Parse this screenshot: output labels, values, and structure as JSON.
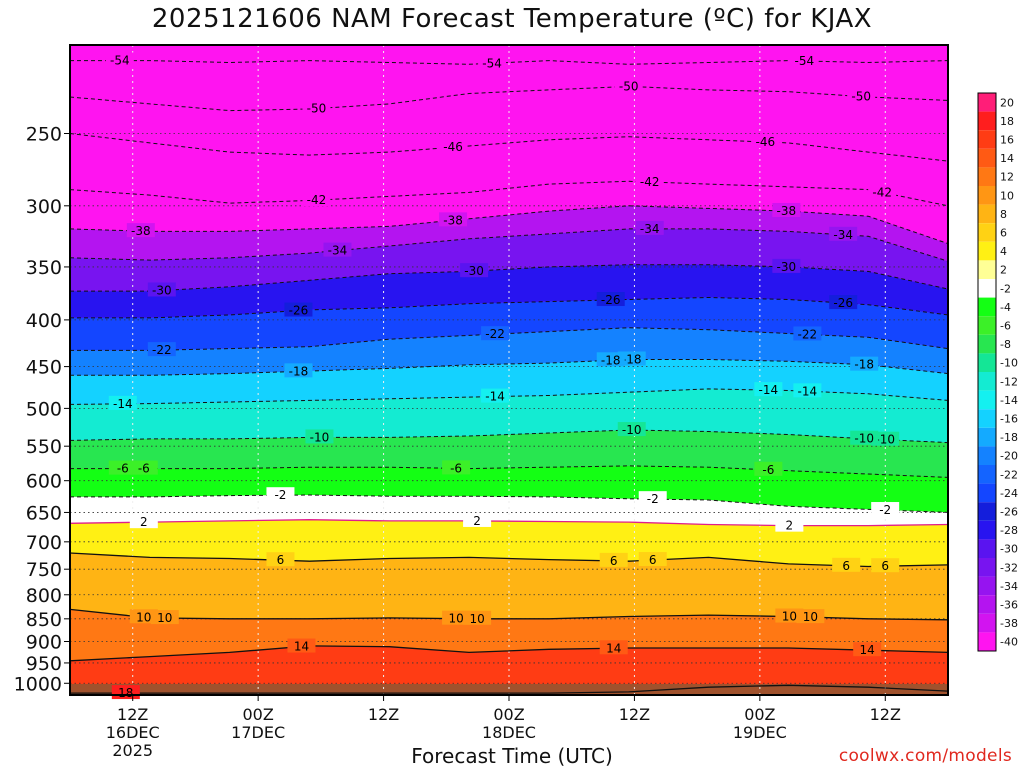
{
  "chart_data": {
    "type": "heatmap",
    "title": "2025121606 NAM Forecast Temperature (ºC) for KJAX",
    "xlabel": "Forecast Time (UTC)",
    "ylabel": "",
    "y_scale": "log (pressure)",
    "ylim": [
      1030,
      200
    ],
    "y_ticks": [
      250,
      300,
      350,
      400,
      450,
      500,
      550,
      600,
      650,
      700,
      750,
      800,
      850,
      900,
      950,
      1000
    ],
    "x_ticks": [
      {
        "time": "2025-12-16 12Z",
        "lines": [
          "12Z",
          "16DEC",
          "2025"
        ]
      },
      {
        "time": "2025-12-17 00Z",
        "lines": [
          "00Z",
          "17DEC"
        ]
      },
      {
        "time": "2025-12-17 12Z",
        "lines": [
          "12Z"
        ]
      },
      {
        "time": "2025-12-18 00Z",
        "lines": [
          "00Z",
          "18DEC"
        ]
      },
      {
        "time": "2025-12-18 12Z",
        "lines": [
          "12Z"
        ]
      },
      {
        "time": "2025-12-19 00Z",
        "lines": [
          "00Z",
          "19DEC"
        ]
      },
      {
        "time": "2025-12-19 12Z",
        "lines": [
          "12Z"
        ]
      }
    ],
    "xlim": [
      "2025-12-16 06Z",
      "2025-12-19 18Z"
    ],
    "grid": true,
    "colorbar": {
      "position": "right",
      "labels": [
        "20",
        "18",
        "16",
        "14",
        "12",
        "10",
        "8",
        "6",
        "4",
        "2",
        "-2",
        "-4",
        "-6",
        "-8",
        "-10",
        "-12",
        "-14",
        "-16",
        "-18",
        "-20",
        "-22",
        "-24",
        "-26",
        "-28",
        "-30",
        "-32",
        "-34",
        "-36",
        "-38",
        "-40"
      ],
      "colors": [
        "#ff1e78",
        "#ff1e1e",
        "#ff3c14",
        "#ff5a14",
        "#ff7814",
        "#ff9614",
        "#ffb414",
        "#ffd214",
        "#fff014",
        "#ffff96",
        "#ffffff",
        "#14ff14",
        "#3cf028",
        "#28e650",
        "#14e696",
        "#14ebd2",
        "#14f0f0",
        "#14d2ff",
        "#14aaff",
        "#1482ff",
        "#1464ff",
        "#1446ff",
        "#141edc",
        "#2814f0",
        "#5a14f0",
        "#7814f0",
        "#9614f0",
        "#b414f0",
        "#d214f0",
        "#ff14f0"
      ]
    },
    "contour_labels": [
      "-54",
      "-54",
      "-54",
      "-50",
      "-50",
      "-50",
      "-46",
      "-46",
      "-42",
      "-42",
      "-42",
      "-38",
      "-38",
      "-38",
      "-34",
      "-34",
      "-34",
      "-30",
      "-30",
      "-30",
      "-26",
      "-26",
      "-26",
      "-22",
      "-22",
      "-22",
      "-18",
      "-18",
      "-18",
      "-18",
      "-14",
      "-14",
      "-14",
      "-14",
      "-10",
      "-10",
      "-10",
      "-10",
      "-6",
      "-6",
      "-6",
      "-6",
      "-2",
      "-2",
      "-2",
      "2",
      "2",
      "2",
      "6",
      "6",
      "6",
      "6",
      "6",
      "10",
      "10",
      "10",
      "10",
      "10",
      "10",
      "14",
      "14",
      "14",
      "18"
    ],
    "contour_rows": [
      {
        "level": -54,
        "p": [
          208,
          208,
          209,
          208,
          209,
          210,
          208,
          210,
          209,
          208,
          209,
          208
        ]
      },
      {
        "level": -50,
        "p": [
          228,
          232,
          236,
          235,
          232,
          226,
          224,
          222,
          224,
          225,
          228,
          230
        ]
      },
      {
        "level": -46,
        "p": [
          250,
          256,
          262,
          264,
          262,
          258,
          254,
          252,
          254,
          256,
          262,
          268
        ]
      },
      {
        "level": -42,
        "p": [
          288,
          292,
          298,
          296,
          293,
          290,
          284,
          282,
          284,
          286,
          288,
          300
        ]
      },
      {
        "level": -38,
        "p": [
          318,
          320,
          320,
          318,
          316,
          310,
          304,
          300,
          302,
          304,
          308,
          330
        ]
      },
      {
        "level": -34,
        "p": [
          342,
          344,
          342,
          338,
          332,
          326,
          322,
          318,
          318,
          320,
          324,
          345
        ]
      },
      {
        "level": -30,
        "p": [
          372,
          372,
          368,
          362,
          356,
          354,
          350,
          348,
          348,
          350,
          354,
          370
        ]
      },
      {
        "level": -26,
        "p": [
          398,
          398,
          395,
          390,
          388,
          384,
          382,
          380,
          378,
          380,
          385,
          395
        ]
      },
      {
        "level": -22,
        "p": [
          432,
          432,
          430,
          428,
          420,
          416,
          412,
          408,
          410,
          414,
          418,
          430
        ]
      },
      {
        "level": -18,
        "p": [
          460,
          460,
          458,
          455,
          452,
          448,
          446,
          442,
          442,
          444,
          448,
          458
        ]
      },
      {
        "level": -14,
        "p": [
          495,
          494,
          492,
          490,
          488,
          486,
          484,
          480,
          476,
          478,
          482,
          490
        ]
      },
      {
        "level": -10,
        "p": [
          542,
          540,
          540,
          538,
          538,
          536,
          532,
          528,
          530,
          534,
          540,
          545
        ]
      },
      {
        "level": -6,
        "p": [
          582,
          582,
          582,
          580,
          580,
          582,
          580,
          578,
          580,
          585,
          590,
          595
        ]
      },
      {
        "level": -2,
        "p": [
          625,
          625,
          623,
          622,
          624,
          624,
          625,
          628,
          630,
          640,
          645,
          650
        ]
      },
      {
        "level": 2,
        "p": [
          668,
          666,
          664,
          662,
          664,
          664,
          665,
          666,
          670,
          672,
          672,
          670
        ]
      },
      {
        "level": 6,
        "p": [
          720,
          728,
          730,
          735,
          730,
          728,
          732,
          735,
          728,
          740,
          745,
          742
        ]
      },
      {
        "level": 10,
        "p": [
          830,
          848,
          850,
          850,
          848,
          850,
          850,
          845,
          842,
          845,
          850,
          852
        ]
      },
      {
        "level": 14,
        "p": [
          945,
          935,
          925,
          910,
          912,
          925,
          918,
          915,
          915,
          915,
          920,
          925
        ]
      },
      {
        "level": 18,
        "p": [
          1025,
          1025,
          1025,
          1025,
          1025,
          1025,
          1025,
          1022,
          1010,
          1005,
          1010,
          1020
        ]
      }
    ]
  },
  "footer": {
    "credit": "coolwx.com/models"
  }
}
